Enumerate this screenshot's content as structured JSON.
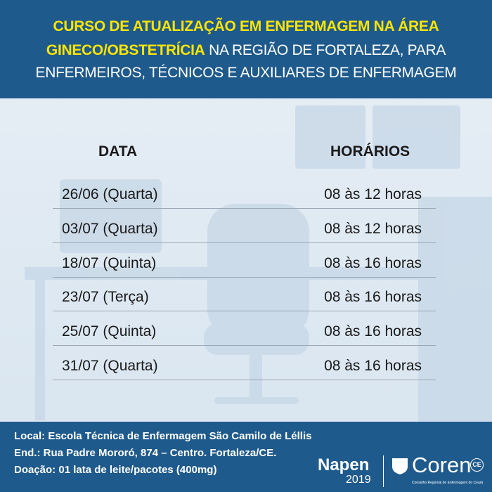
{
  "header": {
    "title_highlight_1": "CURSO DE ATUALIZAÇÃO EM ENFERMAGEM NA ÁREA",
    "title_highlight_2": "GINECO/OBSTETRÍCIA",
    "title_rest_1": "NA REGIÃO DE FORTALEZA, PARA",
    "title_rest_2": "ENFERMEIROS, TÉCNICOS E AUXILIARES DE ENFERMAGEM"
  },
  "table": {
    "columns": [
      "DATA",
      "HORÁRIOS"
    ],
    "rows": [
      [
        "26/06 (Quarta)",
        "08 às 12 horas"
      ],
      [
        "03/07 (Quarta)",
        "08 às 12 horas"
      ],
      [
        "18/07 (Quinta)",
        "08 às 16 horas"
      ],
      [
        "23/07 (Terça)",
        "08 às 16 horas"
      ],
      [
        "25/07 (Quinta)",
        "08 às 16 horas"
      ],
      [
        "31/07 (Quarta)",
        "08 às 16 horas"
      ]
    ]
  },
  "footer": {
    "lines": [
      "Local: Escola Técnica de Enfermagem São Camilo de Léllis",
      "End.: Rua Padre Mororó, 874 – Centro. Fortaleza/CE.",
      "Doação: 01 lata de leite/pacotes (400mg)"
    ],
    "logo_napen": "Napen",
    "logo_year": "2019",
    "logo_coren": "Coren",
    "logo_ce": "CE",
    "logo_coren_sub": "Conselho Regional de Enfermagem do Ceará"
  }
}
